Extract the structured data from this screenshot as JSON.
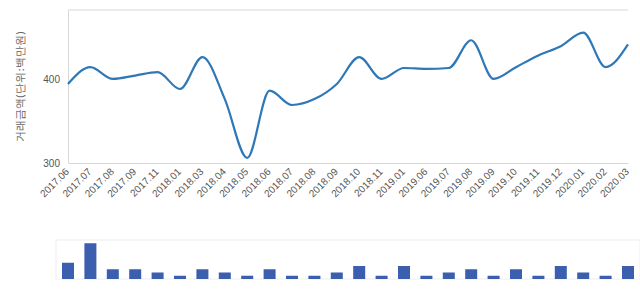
{
  "chart_data": {
    "type": "line",
    "y_label": "거래금액(단위:백만원)",
    "categories": [
      "2017.06",
      "2017.07",
      "2017.08",
      "2017.09",
      "2017.11",
      "2018.01",
      "2018.03",
      "2018.04",
      "2018.05",
      "2018.06",
      "2018.07",
      "2018.08",
      "2018.09",
      "2018.10",
      "2018.11",
      "2019.01",
      "2019.06",
      "2019.07",
      "2019.08",
      "2019.09",
      "2019.10",
      "2019.11",
      "2019.12",
      "2020.01",
      "2020.02",
      "2020.03"
    ],
    "series": [
      {
        "type": "line",
        "color": "#2e78b7",
        "values": [
          394,
          414,
          400,
          404,
          408,
          388,
          426,
          376,
          306,
          386,
          369,
          376,
          394,
          426,
          400,
          413,
          412,
          413,
          446,
          400,
          414,
          428,
          439,
          455,
          414,
          441
        ]
      },
      {
        "type": "bar",
        "axis": "y2",
        "color": "#3b5fae",
        "values": [
          5,
          11,
          3,
          3,
          2,
          1,
          3,
          2,
          1,
          3,
          1,
          1,
          2,
          4,
          1,
          4,
          1,
          2,
          3,
          1,
          3,
          1,
          4,
          2,
          1,
          4
        ]
      }
    ],
    "ylim": [
      300,
      482
    ],
    "yticks": [
      300,
      400
    ],
    "y2lim": [
      0,
      12
    ],
    "y2ticks": [],
    "grid": false,
    "tick_labels": true
  }
}
